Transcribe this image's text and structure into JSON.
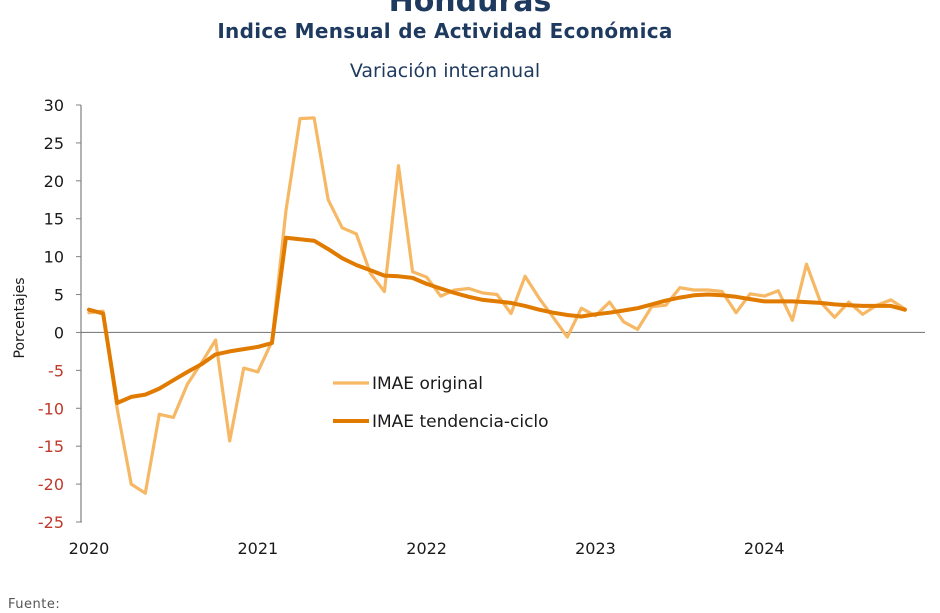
{
  "header": {
    "top_cut": "Honduras",
    "title": "Indice Mensual de  Actividad Económica",
    "subtitle": "Variación interanual"
  },
  "footer": {
    "source_label": "Fuente:"
  },
  "colors": {
    "original": "#F7B865",
    "trend": "#E07B00",
    "zero_line": "#808080",
    "axis": "#808080",
    "negative_tick": "#c0392b"
  },
  "chart_data": {
    "type": "line",
    "title": "Indice Mensual de  Actividad Económica",
    "subtitle": "Variación interanual",
    "xlabel": "",
    "ylabel": "Porcentajes",
    "ylim": [
      -25,
      30
    ],
    "yticks": [
      30,
      25,
      20,
      15,
      10,
      5,
      0,
      -5,
      -10,
      -15,
      -20,
      -25
    ],
    "xlim": [
      "2020-01",
      "2024-12"
    ],
    "xticks": [
      "2020",
      "2021",
      "2022",
      "2023",
      "2024"
    ],
    "grid": false,
    "legend": {
      "placement": "center-left"
    },
    "series": [
      {
        "name": "IMAE original",
        "color": "#F7B865",
        "points": [
          [
            "2020-01",
            2.6
          ],
          [
            "2020-02",
            2.8
          ],
          [
            "2020-03",
            -10.0
          ],
          [
            "2020-04",
            -20.0
          ],
          [
            "2020-05",
            -21.2
          ],
          [
            "2020-06",
            -10.8
          ],
          [
            "2020-07",
            -11.2
          ],
          [
            "2020-08",
            -6.8
          ],
          [
            "2020-09",
            -4.0
          ],
          [
            "2020-10",
            -1.0
          ],
          [
            "2020-11",
            -14.3
          ],
          [
            "2020-12",
            -4.7
          ],
          [
            "2021-01",
            -5.2
          ],
          [
            "2021-02",
            -1.2
          ],
          [
            "2021-03",
            16.0
          ],
          [
            "2021-04",
            28.2
          ],
          [
            "2021-05",
            28.3
          ],
          [
            "2021-06",
            17.5
          ],
          [
            "2021-07",
            13.8
          ],
          [
            "2021-08",
            13.0
          ],
          [
            "2021-09",
            7.8
          ],
          [
            "2021-10",
            5.4
          ],
          [
            "2021-11",
            22.0
          ],
          [
            "2021-12",
            8.0
          ],
          [
            "2022-01",
            7.3
          ],
          [
            "2022-02",
            4.8
          ],
          [
            "2022-03",
            5.6
          ],
          [
            "2022-04",
            5.8
          ],
          [
            "2022-05",
            5.2
          ],
          [
            "2022-06",
            5.0
          ],
          [
            "2022-07",
            2.5
          ],
          [
            "2022-08",
            7.4
          ],
          [
            "2022-09",
            4.5
          ],
          [
            "2022-10",
            2.0
          ],
          [
            "2022-11",
            -0.6
          ],
          [
            "2022-12",
            3.2
          ],
          [
            "2023-01",
            2.2
          ],
          [
            "2023-02",
            4.0
          ],
          [
            "2023-03",
            1.4
          ],
          [
            "2023-04",
            0.4
          ],
          [
            "2023-05",
            3.4
          ],
          [
            "2023-06",
            3.6
          ],
          [
            "2023-07",
            5.9
          ],
          [
            "2023-08",
            5.6
          ],
          [
            "2023-09",
            5.6
          ],
          [
            "2023-10",
            5.4
          ],
          [
            "2023-11",
            2.6
          ],
          [
            "2023-12",
            5.1
          ],
          [
            "2024-01",
            4.8
          ],
          [
            "2024-02",
            5.5
          ],
          [
            "2024-03",
            1.6
          ],
          [
            "2024-04",
            9.0
          ],
          [
            "2024-05",
            4.0
          ],
          [
            "2024-06",
            2.0
          ],
          [
            "2024-07",
            4.0
          ],
          [
            "2024-08",
            2.4
          ],
          [
            "2024-09",
            3.6
          ],
          [
            "2024-10",
            4.3
          ],
          [
            "2024-11",
            3.1
          ]
        ]
      },
      {
        "name": "IMAE tendencia-ciclo",
        "color": "#E07B00",
        "points": [
          [
            "2020-01",
            3.0
          ],
          [
            "2020-02",
            2.5
          ],
          [
            "2020-03",
            -9.3
          ],
          [
            "2020-04",
            -8.5
          ],
          [
            "2020-05",
            -8.2
          ],
          [
            "2020-06",
            -7.4
          ],
          [
            "2020-07",
            -6.3
          ],
          [
            "2020-08",
            -5.2
          ],
          [
            "2020-09",
            -4.2
          ],
          [
            "2020-10",
            -2.9
          ],
          [
            "2020-11",
            -2.5
          ],
          [
            "2020-12",
            -2.2
          ],
          [
            "2021-01",
            -1.9
          ],
          [
            "2021-02",
            -1.4
          ],
          [
            "2021-03",
            12.5
          ],
          [
            "2021-04",
            12.3
          ],
          [
            "2021-05",
            12.1
          ],
          [
            "2021-06",
            11.0
          ],
          [
            "2021-07",
            9.8
          ],
          [
            "2021-08",
            8.9
          ],
          [
            "2021-09",
            8.2
          ],
          [
            "2021-10",
            7.5
          ],
          [
            "2021-11",
            7.4
          ],
          [
            "2021-12",
            7.2
          ],
          [
            "2022-01",
            6.4
          ],
          [
            "2022-02",
            5.8
          ],
          [
            "2022-03",
            5.2
          ],
          [
            "2022-04",
            4.7
          ],
          [
            "2022-05",
            4.3
          ],
          [
            "2022-06",
            4.1
          ],
          [
            "2022-07",
            3.9
          ],
          [
            "2022-08",
            3.5
          ],
          [
            "2022-09",
            3.0
          ],
          [
            "2022-10",
            2.6
          ],
          [
            "2022-11",
            2.3
          ],
          [
            "2022-12",
            2.1
          ],
          [
            "2023-01",
            2.4
          ],
          [
            "2023-02",
            2.6
          ],
          [
            "2023-03",
            2.9
          ],
          [
            "2023-04",
            3.2
          ],
          [
            "2023-05",
            3.7
          ],
          [
            "2023-06",
            4.2
          ],
          [
            "2023-07",
            4.6
          ],
          [
            "2023-08",
            4.9
          ],
          [
            "2023-09",
            5.0
          ],
          [
            "2023-10",
            4.9
          ],
          [
            "2023-11",
            4.7
          ],
          [
            "2023-12",
            4.4
          ],
          [
            "2024-01",
            4.1
          ],
          [
            "2024-02",
            4.1
          ],
          [
            "2024-03",
            4.1
          ],
          [
            "2024-04",
            4.0
          ],
          [
            "2024-05",
            3.9
          ],
          [
            "2024-06",
            3.7
          ],
          [
            "2024-07",
            3.6
          ],
          [
            "2024-08",
            3.5
          ],
          [
            "2024-09",
            3.5
          ],
          [
            "2024-10",
            3.5
          ],
          [
            "2024-11",
            3.0
          ]
        ]
      }
    ]
  }
}
